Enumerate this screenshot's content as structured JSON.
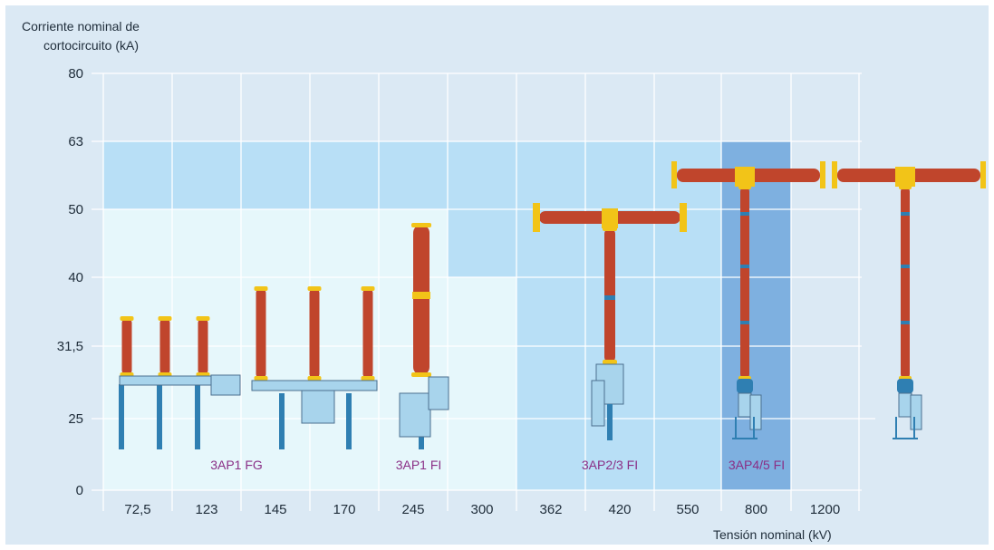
{
  "chart_data": {
    "type": "area",
    "ylabel_lines": [
      "Corriente nominal de",
      "cortocircuito (kA)"
    ],
    "xlabel": "Tensión nominal (kV)",
    "y_ticks": [
      "80",
      "63",
      "50",
      "40",
      "31,5",
      "25",
      "0"
    ],
    "x_ticks": [
      "72,5",
      "123",
      "145",
      "170",
      "245",
      "300",
      "362",
      "420",
      "550",
      "800",
      "1200"
    ],
    "grid": true,
    "regions": [
      {
        "name": "3AP1 FG",
        "from_kv": "72,5",
        "to_kv": "245",
        "max_ka": 50,
        "color": "#e6f7fb"
      },
      {
        "name": "3AP1 FI",
        "from_kv": "245",
        "to_kv": "300",
        "max_ka": 50,
        "color": "#e6f7fb"
      },
      {
        "name": "3AP2/3 FI",
        "from_kv": "362",
        "to_kv": "550",
        "max_ka": 63,
        "color": "#b8dff6"
      },
      {
        "name": "3AP4/5 FI",
        "from_kv": "800",
        "to_kv": "800",
        "max_ka": 63,
        "color": "#7eb0e0"
      }
    ],
    "envelope": {
      "upper_ka": 63,
      "step_ka": 40,
      "step_region_kv": "300"
    }
  },
  "colors": {
    "background": "#dbe9f4",
    "grid": "#ffffff",
    "region_light": "#e6f7fb",
    "region_medium": "#b8dff6",
    "region_dark": "#7eb0e0",
    "region_label": "#8a2f86",
    "insulator": "#c0452c",
    "flange": "#f2c418",
    "support": "#2f7fb2",
    "mechanism": "#a8d4ec"
  },
  "icons": [
    "circuit-breaker-3ap1fg-icon",
    "circuit-breaker-3ap1fi-icon",
    "circuit-breaker-3ap23fi-icon",
    "circuit-breaker-3ap45fi-icon"
  ]
}
